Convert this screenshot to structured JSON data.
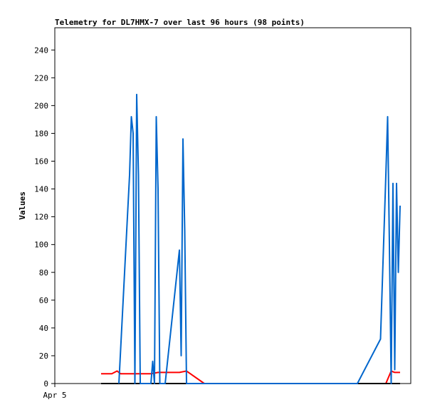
{
  "chart_data": {
    "type": "line",
    "title": "Telemetry for DL7HMX-7 over last 96 hours (98 points)",
    "xlabel": "",
    "ylabel": "Values",
    "ylim": [
      0,
      256
    ],
    "yticks": [
      0,
      20,
      40,
      60,
      80,
      100,
      120,
      140,
      160,
      180,
      200,
      220,
      240
    ],
    "xlim": [
      0,
      100
    ],
    "xticks": [
      {
        "pos": 0,
        "label": "Apr 5"
      }
    ],
    "grid": false,
    "series": [
      {
        "color": "#ff0000",
        "x": [
          13,
          16,
          17.5,
          18,
          18.5,
          27,
          29,
          35,
          37,
          42,
          93,
          94.5,
          95.5,
          96.5,
          97
        ],
        "y": [
          7,
          7,
          9,
          8,
          7,
          7,
          8,
          8,
          9,
          0,
          0,
          9,
          8,
          8,
          8
        ]
      },
      {
        "color": "#000000",
        "x": [
          13,
          97
        ],
        "y": [
          0,
          0
        ]
      },
      {
        "color": "#0066cc",
        "x": [
          18,
          21,
          21.5,
          22,
          22.5,
          23,
          23.5,
          24,
          24.5,
          27,
          27.5,
          28,
          28.5,
          29,
          29.5,
          30,
          30.5,
          31,
          35,
          35.5,
          36,
          36.5,
          37,
          37.5,
          38,
          39,
          85,
          91.5,
          93,
          93.5,
          94,
          94.5,
          95,
          95.5,
          96,
          96.5,
          97
        ],
        "y": [
          0,
          150,
          192,
          180,
          0,
          208,
          150,
          0,
          0,
          0,
          16,
          0,
          192,
          140,
          0,
          0,
          0,
          0,
          96,
          20,
          176,
          110,
          0,
          0,
          0,
          0,
          0,
          32,
          150,
          192,
          100,
          0,
          144,
          10,
          144,
          80,
          128
        ]
      }
    ]
  }
}
